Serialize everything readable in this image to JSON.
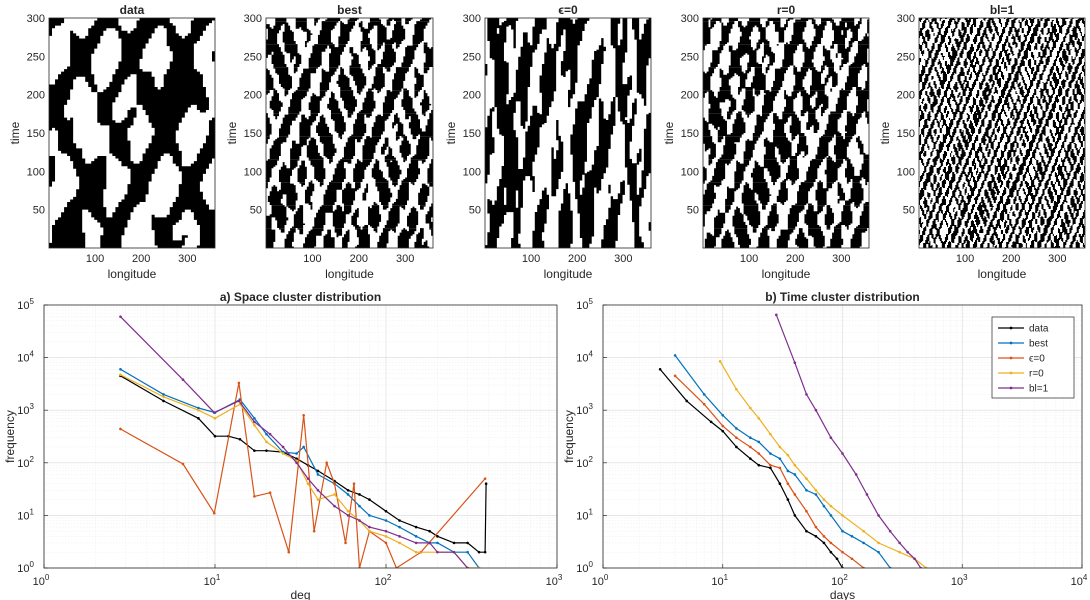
{
  "panels_top": [
    {
      "title": "data",
      "xlabel": "longitude",
      "ylabel": "time",
      "xticks": [
        100,
        200,
        300
      ],
      "yticks": [
        50,
        100,
        150,
        200,
        250,
        300
      ],
      "xlim": [
        0,
        360
      ],
      "ylim": [
        0,
        300
      ],
      "texture": "blobs"
    },
    {
      "title": "best",
      "xlabel": "longitude",
      "ylabel": "time",
      "xticks": [
        100,
        200,
        300
      ],
      "yticks": [
        50,
        100,
        150,
        200,
        250,
        300
      ],
      "xlim": [
        0,
        360
      ],
      "ylim": [
        0,
        300
      ],
      "texture": "medium"
    },
    {
      "title": "ϵ=0",
      "xlabel": "longitude",
      "ylabel": "time",
      "xticks": [
        100,
        200,
        300
      ],
      "yticks": [
        50,
        100,
        150,
        200,
        250,
        300
      ],
      "xlim": [
        0,
        360
      ],
      "ylim": [
        0,
        300
      ],
      "texture": "bars"
    },
    {
      "title": "r=0",
      "xlabel": "longitude",
      "ylabel": "time",
      "xticks": [
        100,
        200,
        300
      ],
      "yticks": [
        50,
        100,
        150,
        200,
        250,
        300
      ],
      "xlim": [
        0,
        360
      ],
      "ylim": [
        0,
        300
      ],
      "texture": "medium"
    },
    {
      "title": "bl=1",
      "xlabel": "longitude",
      "ylabel": "time",
      "xticks": [
        100,
        200,
        300
      ],
      "yticks": [
        50,
        100,
        150,
        200,
        250,
        300
      ],
      "xlim": [
        0,
        360
      ],
      "ylim": [
        0,
        300
      ],
      "texture": "fine"
    }
  ],
  "colors": {
    "data": "#000000",
    "best": "#0072BD",
    "eps": "#D95319",
    "r": "#EDB120",
    "bl": "#7E2F8E"
  },
  "chart_data": [
    {
      "type": "line",
      "title": "a) Space cluster distribution",
      "xlabel": "deg",
      "ylabel": "frequency",
      "xscale": "log",
      "yscale": "log",
      "xlim": [
        1,
        1000
      ],
      "ylim": [
        1,
        100000
      ],
      "xticklabels": [
        "10",
        "10",
        "10",
        "10"
      ],
      "xtickexp": [
        "0",
        "1",
        "2",
        "3"
      ],
      "yticklabels": [
        "10",
        "10",
        "10",
        "10",
        "10",
        "10"
      ],
      "ytickexp": [
        "0",
        "1",
        "2",
        "3",
        "4",
        "5"
      ],
      "grid": true,
      "series": [
        {
          "name": "data",
          "color_key": "data",
          "x": [
            2.8,
            5,
            8,
            10,
            12,
            14,
            17,
            20,
            25,
            30,
            35,
            40,
            50,
            60,
            70,
            80,
            100,
            120,
            150,
            180,
            200,
            250,
            300,
            350,
            380,
            385
          ],
          "y": [
            4500,
            1500,
            700,
            320,
            320,
            280,
            170,
            170,
            160,
            120,
            90,
            70,
            45,
            30,
            25,
            20,
            12,
            8,
            6,
            5,
            4,
            3,
            3,
            2,
            2,
            40
          ]
        },
        {
          "name": "best",
          "color_key": "best",
          "x": [
            2.8,
            5,
            8,
            10,
            14,
            17,
            20,
            25,
            30,
            33,
            40,
            50,
            60,
            70,
            80,
            100,
            120,
            150,
            180,
            200,
            250,
            300,
            350
          ],
          "y": [
            6000,
            2000,
            1100,
            900,
            1600,
            700,
            350,
            160,
            150,
            200,
            60,
            40,
            25,
            15,
            10,
            8,
            6,
            4,
            3,
            3,
            2,
            2,
            1
          ]
        },
        {
          "name": "ϵ=0",
          "color_key": "eps",
          "x": [
            2.8,
            6.5,
            9.9,
            13.8,
            17,
            21,
            27,
            33,
            38,
            45,
            50,
            58,
            65,
            70,
            80,
            100,
            115,
            160,
            380
          ],
          "y": [
            440,
            95,
            11,
            3300,
            23,
            27,
            2,
            800,
            5,
            100,
            40,
            3,
            40,
            1,
            5,
            3,
            1,
            2,
            50
          ]
        },
        {
          "name": "r=0",
          "color_key": "r",
          "x": [
            2.8,
            5,
            8,
            10,
            14,
            17,
            20,
            25,
            30,
            35,
            40,
            50,
            60,
            70,
            80,
            100,
            120,
            150,
            200,
            250,
            300,
            350
          ],
          "y": [
            4700,
            1800,
            1000,
            700,
            1300,
            520,
            250,
            150,
            110,
            40,
            20,
            25,
            12,
            8,
            5,
            4,
            3,
            2,
            2,
            2,
            1,
            1
          ]
        },
        {
          "name": "bl=1",
          "color_key": "bl",
          "x": [
            2.8,
            6.5,
            9.9,
            13.8,
            17,
            21,
            25,
            30,
            35,
            40,
            50,
            60,
            70,
            80,
            100,
            120,
            150,
            180,
            200,
            250,
            300
          ],
          "y": [
            60000,
            3800,
            900,
            1500,
            600,
            350,
            200,
            100,
            50,
            30,
            15,
            10,
            8,
            6,
            5,
            4,
            3,
            3,
            2,
            2,
            1
          ]
        }
      ]
    },
    {
      "type": "line",
      "title": "b) Time cluster distribution",
      "xlabel": "days",
      "ylabel": "frequency",
      "xscale": "log",
      "yscale": "log",
      "xlim": [
        1,
        10000
      ],
      "ylim": [
        1,
        100000
      ],
      "xticklabels": [
        "10",
        "10",
        "10",
        "10",
        "10"
      ],
      "xtickexp": [
        "0",
        "1",
        "2",
        "3",
        "4"
      ],
      "yticklabels": [
        "10",
        "10",
        "10",
        "10",
        "10",
        "10"
      ],
      "ytickexp": [
        "0",
        "1",
        "2",
        "3",
        "4",
        "5"
      ],
      "grid": true,
      "legend": "top-right",
      "series": [
        {
          "name": "data",
          "color_key": "data",
          "x": [
            3,
            5,
            8,
            10,
            13,
            17,
            20,
            25,
            30,
            35,
            40,
            50,
            60,
            70,
            80,
            90,
            100
          ],
          "y": [
            6000,
            1500,
            600,
            400,
            200,
            120,
            90,
            80,
            40,
            20,
            10,
            5,
            4,
            3,
            2,
            1.5,
            1
          ]
        },
        {
          "name": "best",
          "color_key": "best",
          "x": [
            4,
            7,
            10,
            13,
            17,
            20,
            25,
            30,
            35,
            40,
            50,
            60,
            70,
            80,
            100,
            120,
            150,
            200,
            250
          ],
          "y": [
            11000,
            2000,
            800,
            450,
            300,
            250,
            150,
            120,
            70,
            60,
            30,
            25,
            15,
            10,
            5,
            4,
            3,
            2,
            1
          ]
        },
        {
          "name": "ϵ=0",
          "color_key": "eps",
          "x": [
            4,
            7,
            10,
            13,
            17,
            20,
            25,
            30,
            35,
            40,
            50,
            60,
            70,
            80,
            100,
            120,
            150
          ],
          "y": [
            4500,
            1300,
            500,
            300,
            200,
            150,
            90,
            80,
            40,
            25,
            12,
            6,
            4,
            3,
            2,
            1.5,
            1
          ]
        },
        {
          "name": "r=0",
          "color_key": "r",
          "x": [
            9.5,
            13,
            17,
            20,
            25,
            30,
            35,
            40,
            50,
            60,
            70,
            80,
            100,
            150,
            200,
            300,
            400,
            500
          ],
          "y": [
            8500,
            2500,
            1100,
            700,
            350,
            200,
            140,
            90,
            50,
            30,
            20,
            15,
            10,
            5,
            3,
            2,
            1.5,
            1
          ]
        },
        {
          "name": "bl=1",
          "color_key": "bl",
          "x": [
            28,
            40,
            50,
            60,
            80,
            100,
            130,
            160,
            200,
            250,
            300,
            350,
            400,
            450
          ],
          "y": [
            65000,
            8000,
            2000,
            1000,
            300,
            150,
            60,
            25,
            10,
            5,
            3,
            2,
            1.5,
            1
          ]
        }
      ]
    }
  ]
}
